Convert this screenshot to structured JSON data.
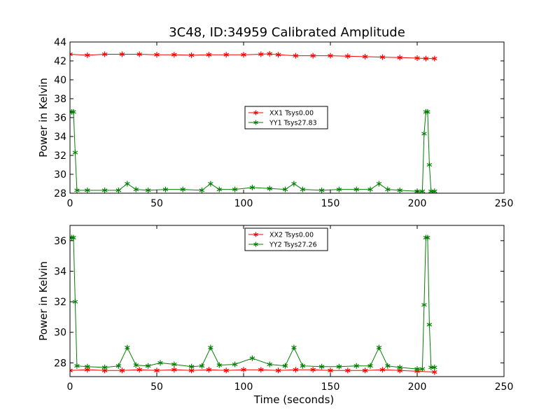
{
  "chart_data": [
    {
      "type": "line",
      "title": "3C48, ID:34959 Calibrated Amplitude",
      "xlabel": "",
      "ylabel": "Power in Kelvin",
      "xlim": [
        0,
        250
      ],
      "ylim": [
        28,
        44
      ],
      "xticks": [
        0,
        50,
        100,
        150,
        200,
        250
      ],
      "yticks": [
        28,
        30,
        32,
        34,
        36,
        38,
        40,
        42,
        44
      ],
      "legend_position": "center",
      "series": [
        {
          "name": "XX1 Tsys0.00",
          "color": "#ff0000",
          "marker": "star",
          "x": [
            0,
            10,
            20,
            30,
            40,
            50,
            60,
            70,
            80,
            90,
            100,
            110,
            115,
            120,
            130,
            140,
            150,
            160,
            170,
            180,
            190,
            200,
            205,
            210
          ],
          "y": [
            42.7,
            42.6,
            42.7,
            42.7,
            42.7,
            42.65,
            42.65,
            42.6,
            42.65,
            42.65,
            42.65,
            42.7,
            42.75,
            42.65,
            42.55,
            42.55,
            42.55,
            42.5,
            42.45,
            42.4,
            42.35,
            42.3,
            42.25,
            42.25
          ]
        },
        {
          "name": "YY1 Tsys27.83",
          "color": "#008000",
          "marker": "star",
          "x": [
            0,
            1,
            2,
            3,
            4,
            10,
            20,
            28,
            33,
            38,
            45,
            55,
            65,
            76,
            81,
            86,
            95,
            105,
            115,
            124,
            129,
            134,
            145,
            155,
            165,
            173,
            178,
            183,
            190,
            200,
            203,
            204,
            205,
            206,
            207,
            208,
            210
          ],
          "y": [
            36.6,
            36.6,
            36.6,
            32.3,
            28.3,
            28.3,
            28.3,
            28.3,
            29.0,
            28.4,
            28.3,
            28.4,
            28.4,
            28.3,
            29.0,
            28.4,
            28.4,
            28.6,
            28.5,
            28.4,
            29.0,
            28.4,
            28.3,
            28.4,
            28.4,
            28.4,
            29.0,
            28.4,
            28.3,
            28.2,
            28.2,
            34.3,
            36.6,
            36.6,
            31.0,
            28.2,
            28.2
          ]
        }
      ]
    },
    {
      "type": "line",
      "title": "",
      "xlabel": "Time (seconds)",
      "ylabel": "Power in Kelvin",
      "xlim": [
        0,
        250
      ],
      "ylim": [
        27.1,
        37.0
      ],
      "xticks": [
        0,
        50,
        100,
        150,
        200,
        250
      ],
      "yticks": [
        28,
        30,
        32,
        34,
        36
      ],
      "legend_position": "upper center",
      "series": [
        {
          "name": "XX2 Tsys0.00",
          "color": "#ff0000",
          "marker": "star",
          "x": [
            0,
            10,
            20,
            30,
            40,
            50,
            60,
            70,
            80,
            90,
            100,
            110,
            120,
            130,
            140,
            150,
            160,
            170,
            180,
            190,
            200,
            210
          ],
          "y": [
            27.5,
            27.55,
            27.5,
            27.5,
            27.55,
            27.5,
            27.55,
            27.5,
            27.55,
            27.5,
            27.55,
            27.55,
            27.5,
            27.55,
            27.55,
            27.5,
            27.5,
            27.5,
            27.55,
            27.5,
            27.45,
            27.4
          ]
        },
        {
          "name": "YY2 Tsys27.26",
          "color": "#008000",
          "marker": "star",
          "x": [
            0,
            1,
            2,
            3,
            4,
            10,
            20,
            28,
            33,
            38,
            45,
            52,
            60,
            70,
            76,
            81,
            86,
            95,
            105,
            115,
            124,
            129,
            134,
            145,
            155,
            165,
            173,
            178,
            183,
            190,
            200,
            203,
            204,
            205,
            206,
            207,
            208,
            210
          ],
          "y": [
            36.2,
            36.2,
            36.2,
            32.0,
            27.8,
            27.75,
            27.7,
            27.8,
            29.0,
            27.85,
            27.8,
            28.0,
            27.9,
            27.75,
            27.8,
            29.0,
            27.85,
            27.9,
            28.3,
            27.9,
            27.8,
            29.0,
            27.8,
            27.75,
            27.75,
            27.8,
            27.8,
            29.0,
            27.8,
            27.7,
            27.6,
            27.6,
            31.8,
            36.2,
            36.2,
            30.5,
            27.7,
            27.7
          ]
        }
      ]
    }
  ]
}
